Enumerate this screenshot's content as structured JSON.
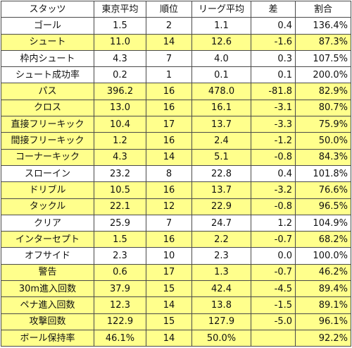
{
  "table": {
    "headers": [
      "スタッツ",
      "東京平均",
      "順位",
      "リーグ平均",
      "差",
      "割合"
    ],
    "highlight_color": "#ffff8c",
    "rows": [
      {
        "stat": "ゴール",
        "tokyo": "1.5",
        "rank": "2",
        "league": "1.1",
        "diff": "0.4",
        "ratio": "136.4%",
        "highlighted": false
      },
      {
        "stat": "シュート",
        "tokyo": "11.0",
        "rank": "14",
        "league": "12.6",
        "diff": "-1.6",
        "ratio": "87.3%",
        "highlighted": true
      },
      {
        "stat": "枠内シュート",
        "tokyo": "4.3",
        "rank": "7",
        "league": "4.0",
        "diff": "0.3",
        "ratio": "107.5%",
        "highlighted": false
      },
      {
        "stat": "シュート成功率",
        "tokyo": "0.2",
        "rank": "1",
        "league": "0.1",
        "diff": "0.1",
        "ratio": "200.0%",
        "highlighted": false
      },
      {
        "stat": "パス",
        "tokyo": "396.2",
        "rank": "16",
        "league": "478.0",
        "diff": "-81.8",
        "ratio": "82.9%",
        "highlighted": true
      },
      {
        "stat": "クロス",
        "tokyo": "13.0",
        "rank": "16",
        "league": "16.1",
        "diff": "-3.1",
        "ratio": "80.7%",
        "highlighted": true
      },
      {
        "stat": "直接フリーキック",
        "tokyo": "10.4",
        "rank": "17",
        "league": "13.7",
        "diff": "-3.3",
        "ratio": "75.9%",
        "highlighted": true
      },
      {
        "stat": "間接フリーキック",
        "tokyo": "1.2",
        "rank": "16",
        "league": "2.4",
        "diff": "-1.2",
        "ratio": "50.0%",
        "highlighted": true
      },
      {
        "stat": "コーナーキック",
        "tokyo": "4.3",
        "rank": "14",
        "league": "5.1",
        "diff": "-0.8",
        "ratio": "84.3%",
        "highlighted": true
      },
      {
        "stat": "スローイン",
        "tokyo": "23.2",
        "rank": "8",
        "league": "22.8",
        "diff": "0.4",
        "ratio": "101.8%",
        "highlighted": false
      },
      {
        "stat": "ドリブル",
        "tokyo": "10.5",
        "rank": "16",
        "league": "13.7",
        "diff": "-3.2",
        "ratio": "76.6%",
        "highlighted": true
      },
      {
        "stat": "タックル",
        "tokyo": "22.1",
        "rank": "12",
        "league": "22.9",
        "diff": "-0.8",
        "ratio": "96.5%",
        "highlighted": true
      },
      {
        "stat": "クリア",
        "tokyo": "25.9",
        "rank": "7",
        "league": "24.7",
        "diff": "1.2",
        "ratio": "104.9%",
        "highlighted": false
      },
      {
        "stat": "インターセプト",
        "tokyo": "1.5",
        "rank": "16",
        "league": "2.2",
        "diff": "-0.7",
        "ratio": "68.2%",
        "highlighted": true
      },
      {
        "stat": "オフサイド",
        "tokyo": "2.3",
        "rank": "10",
        "league": "2.3",
        "diff": "0.0",
        "ratio": "100.0%",
        "highlighted": false
      },
      {
        "stat": "警告",
        "tokyo": "0.6",
        "rank": "17",
        "league": "1.3",
        "diff": "-0.7",
        "ratio": "46.2%",
        "highlighted": true
      },
      {
        "stat": "30m進入回数",
        "tokyo": "37.9",
        "rank": "15",
        "league": "42.4",
        "diff": "-4.5",
        "ratio": "89.4%",
        "highlighted": true
      },
      {
        "stat": "ペナ進入回数",
        "tokyo": "12.3",
        "rank": "14",
        "league": "13.8",
        "diff": "-1.5",
        "ratio": "89.1%",
        "highlighted": true
      },
      {
        "stat": "攻撃回数",
        "tokyo": "122.9",
        "rank": "15",
        "league": "127.9",
        "diff": "-5.0",
        "ratio": "96.1%",
        "highlighted": true
      },
      {
        "stat": "ボール保持率",
        "tokyo": "46.1%",
        "rank": "14",
        "league": "50.0%",
        "diff": "",
        "ratio": "92.2%",
        "highlighted": true
      }
    ]
  }
}
